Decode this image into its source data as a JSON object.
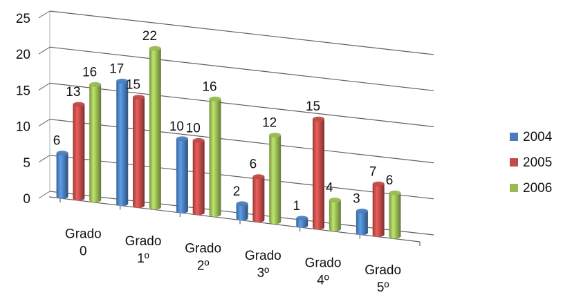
{
  "chart_data": {
    "type": "bar",
    "style": "3d-cylinder-clustered",
    "title": "",
    "xlabel": "",
    "ylabel": "",
    "ylim": [
      0,
      25
    ],
    "yticks": [
      0,
      5,
      10,
      15,
      20,
      25
    ],
    "grid": true,
    "legend_position": "right",
    "categories": [
      [
        "Grado",
        "0"
      ],
      [
        "Grado",
        "1º"
      ],
      [
        "Grado",
        "2º"
      ],
      [
        "Grado",
        "3º"
      ],
      [
        "Grado",
        "4º"
      ],
      [
        "Grado",
        "5º"
      ]
    ],
    "series": [
      {
        "name": "2004",
        "color": "#4a7ebb",
        "values": [
          6,
          17,
          10,
          2,
          1,
          3
        ]
      },
      {
        "name": "2005",
        "color": "#be4b48",
        "values": [
          13,
          15,
          10,
          6,
          15,
          7
        ]
      },
      {
        "name": "2006",
        "color": "#98b954",
        "values": [
          16,
          22,
          16,
          12,
          4,
          6
        ]
      }
    ]
  }
}
